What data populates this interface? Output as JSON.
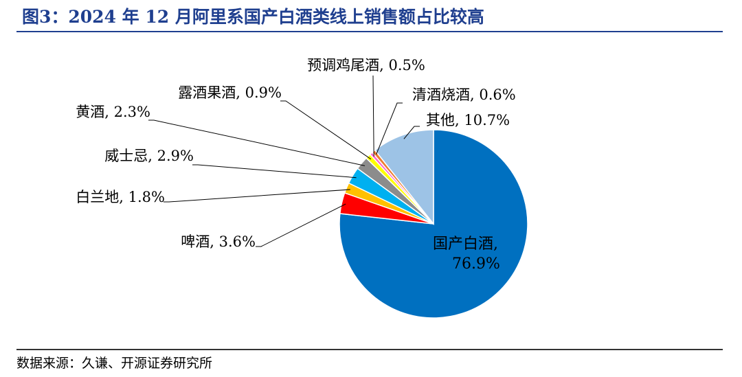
{
  "header": {
    "title": "图3：2024 年 12 月阿里系国产白酒类线上销售额占比较高"
  },
  "footer": {
    "source": "数据来源：久谦、开源证券研究所"
  },
  "chart_data": {
    "type": "pie",
    "unit": "%",
    "slices": [
      {
        "name": "国产白酒",
        "value": 76.9,
        "label": "国产白酒,",
        "value_label": "76.9%",
        "color": "#0070c0"
      },
      {
        "name": "啤酒",
        "value": 3.6,
        "label": "啤酒, 3.6%",
        "color": "#ff0000"
      },
      {
        "name": "白兰地",
        "value": 1.8,
        "label": "白兰地, 1.8%",
        "color": "#ffc000"
      },
      {
        "name": "威士忌",
        "value": 2.9,
        "label": "威士忌, 2.9%",
        "color": "#00b0f0"
      },
      {
        "name": "黄酒",
        "value": 2.3,
        "label": "黄酒, 2.3%",
        "color": "#8c8c8c"
      },
      {
        "name": "露酒果酒",
        "value": 0.9,
        "label": "露酒果酒, 0.9%",
        "color": "#ffff00"
      },
      {
        "name": "预调鸡尾酒",
        "value": 0.5,
        "label": "预调鸡尾酒, 0.5%",
        "color": "#ff66cc"
      },
      {
        "name": "清酒烧酒",
        "value": 0.6,
        "label": "清酒烧酒, 0.6%",
        "color": "#ed7d31"
      },
      {
        "name": "其他",
        "value": 10.7,
        "label": "其他, 10.7%",
        "color": "#9dc3e6"
      }
    ]
  }
}
